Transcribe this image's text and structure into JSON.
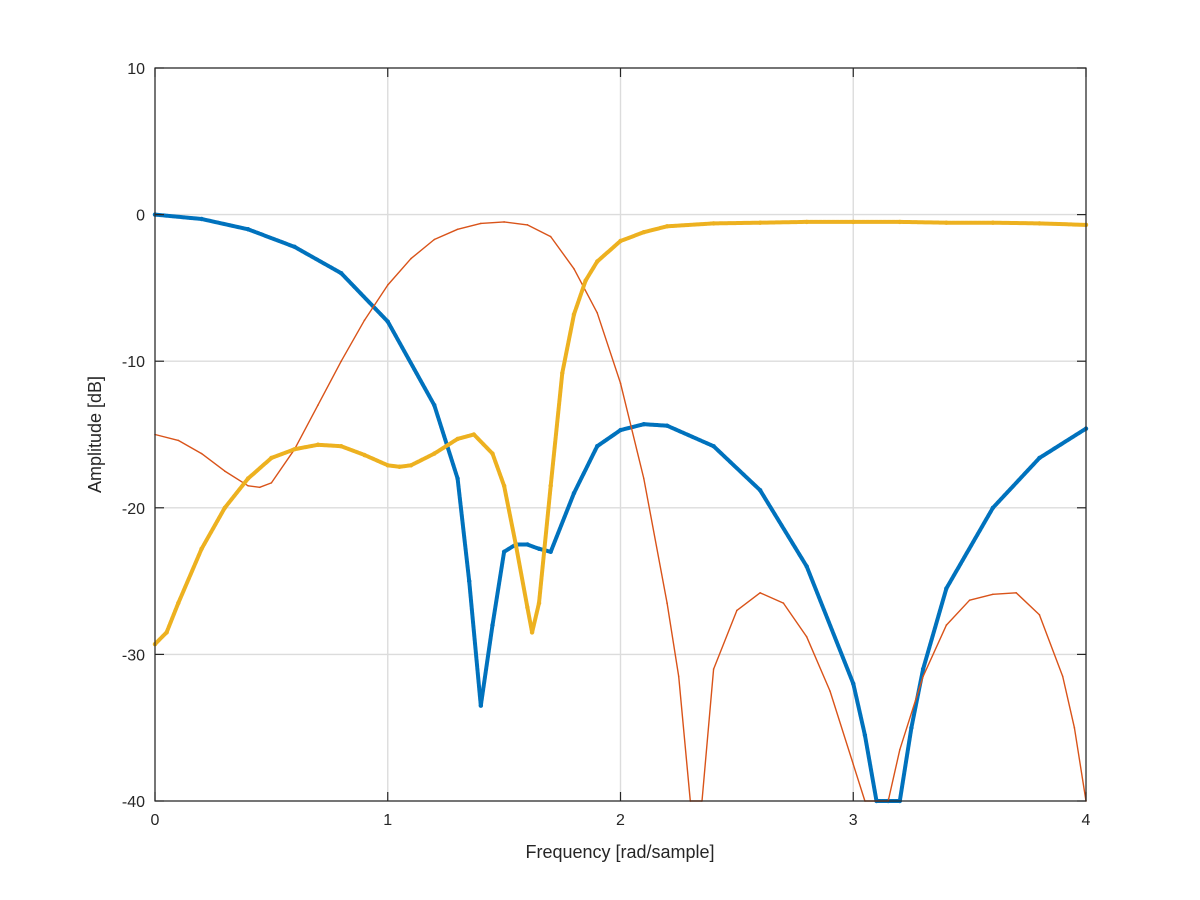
{
  "chart_data": {
    "type": "line",
    "title": "",
    "xlabel": "Frequency [rad/sample]",
    "ylabel": "Amplitude [dB]",
    "xlim": [
      0,
      4
    ],
    "ylim": [
      -40,
      10
    ],
    "xticks": [
      0,
      1,
      2,
      3,
      4
    ],
    "yticks": [
      -40,
      -30,
      -20,
      -10,
      0,
      10
    ],
    "xtick_labels": [
      "0",
      "1",
      "2",
      "3",
      "4"
    ],
    "ytick_labels": [
      "-40",
      "-30",
      "-20",
      "-10",
      "0",
      "10"
    ],
    "grid": true,
    "legend": "none",
    "series": [
      {
        "color": "#0072bd",
        "style": "dotted-thick",
        "x": [
          0,
          0.2,
          0.4,
          0.6,
          0.8,
          1.0,
          1.2,
          1.3,
          1.35,
          1.4,
          1.45,
          1.5,
          1.55,
          1.6,
          1.65,
          1.7,
          1.8,
          1.9,
          2.0,
          2.1,
          2.2,
          2.4,
          2.6,
          2.8,
          3.0,
          3.05,
          3.1,
          3.15,
          3.2,
          3.25,
          3.3,
          3.4,
          3.6,
          3.8,
          4.0
        ],
        "y": [
          0,
          -0.3,
          -1.0,
          -2.2,
          -4.0,
          -7.3,
          -13,
          -18,
          -25,
          -33.5,
          -28,
          -23,
          -22.5,
          -22.5,
          -22.8,
          -23,
          -19,
          -15.8,
          -14.7,
          -14.3,
          -14.4,
          -15.8,
          -18.8,
          -24,
          -32,
          -35.5,
          -40,
          -40,
          -40,
          -35,
          -31,
          -25.5,
          -20,
          -16.6,
          -14.6
        ]
      },
      {
        "color": "#d95319",
        "style": "thin",
        "x": [
          0,
          0.1,
          0.2,
          0.3,
          0.4,
          0.45,
          0.5,
          0.6,
          0.7,
          0.8,
          0.9,
          1.0,
          1.1,
          1.2,
          1.3,
          1.4,
          1.5,
          1.6,
          1.7,
          1.8,
          1.9,
          2.0,
          2.1,
          2.2,
          2.25,
          2.3,
          2.35,
          2.4,
          2.5,
          2.6,
          2.7,
          2.8,
          2.9,
          3.0,
          3.05,
          3.1,
          3.15,
          3.2,
          3.3,
          3.4,
          3.5,
          3.6,
          3.7,
          3.8,
          3.9,
          3.95,
          4.0
        ],
        "y": [
          -15,
          -15.4,
          -16.3,
          -17.5,
          -18.5,
          -18.6,
          -18.3,
          -16,
          -13,
          -10,
          -7.2,
          -4.8,
          -3.0,
          -1.7,
          -1.0,
          -0.6,
          -0.5,
          -0.7,
          -1.5,
          -3.7,
          -6.7,
          -11.5,
          -18,
          -26.5,
          -31.5,
          -40,
          -40,
          -31,
          -27,
          -25.8,
          -26.5,
          -28.8,
          -32.5,
          -37.5,
          -40,
          -40,
          -40,
          -36.5,
          -31.5,
          -28,
          -26.3,
          -25.9,
          -25.8,
          -27.3,
          -31.5,
          -35,
          -40
        ]
      },
      {
        "color": "#edb120",
        "style": "dotted-thick",
        "x": [
          0,
          0.05,
          0.1,
          0.2,
          0.3,
          0.4,
          0.5,
          0.6,
          0.7,
          0.8,
          0.9,
          1.0,
          1.05,
          1.1,
          1.2,
          1.3,
          1.37,
          1.45,
          1.5,
          1.55,
          1.6,
          1.62,
          1.65,
          1.7,
          1.75,
          1.8,
          1.85,
          1.9,
          2.0,
          2.1,
          2.2,
          2.4,
          2.6,
          2.8,
          3.0,
          3.2,
          3.4,
          3.6,
          3.8,
          4.0
        ],
        "y": [
          -29.3,
          -28.5,
          -26.5,
          -22.8,
          -20,
          -18,
          -16.6,
          -16.0,
          -15.7,
          -15.8,
          -16.4,
          -17.1,
          -17.2,
          -17.1,
          -16.3,
          -15.3,
          -15.0,
          -16.3,
          -18.5,
          -22.5,
          -26.8,
          -28.5,
          -26.5,
          -18.5,
          -10.8,
          -6.8,
          -4.5,
          -3.2,
          -1.8,
          -1.2,
          -0.8,
          -0.6,
          -0.55,
          -0.5,
          -0.5,
          -0.5,
          -0.55,
          -0.55,
          -0.6,
          -0.7
        ]
      }
    ]
  }
}
